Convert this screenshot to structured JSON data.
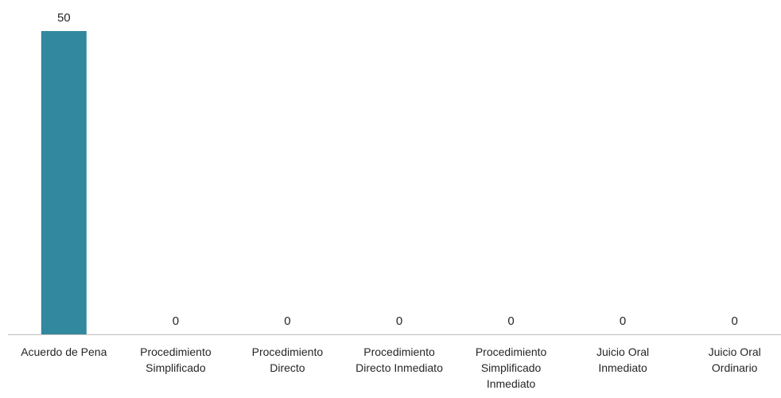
{
  "chart_data": {
    "type": "bar",
    "categories": [
      [
        "Acuerdo de Pena"
      ],
      [
        "Procedimiento",
        "Simplificado"
      ],
      [
        "Procedimiento",
        "Directo"
      ],
      [
        "Procedimiento",
        "Directo Inmediato"
      ],
      [
        "Procedimiento",
        "Simplificado",
        "Inmediato"
      ],
      [
        "Juicio Oral",
        "Inmediato"
      ],
      [
        "Juicio Oral",
        "Ordinario"
      ]
    ],
    "values": [
      50,
      0,
      0,
      0,
      0,
      0,
      0
    ],
    "data_labels": [
      "50",
      "0",
      "0",
      "0",
      "0",
      "0",
      "0"
    ],
    "ylim": [
      0,
      50
    ],
    "grid": false,
    "legend": "none",
    "colors": {
      "bar": "#31889F",
      "axis": "#BFBFBF",
      "text": "#262626"
    }
  }
}
